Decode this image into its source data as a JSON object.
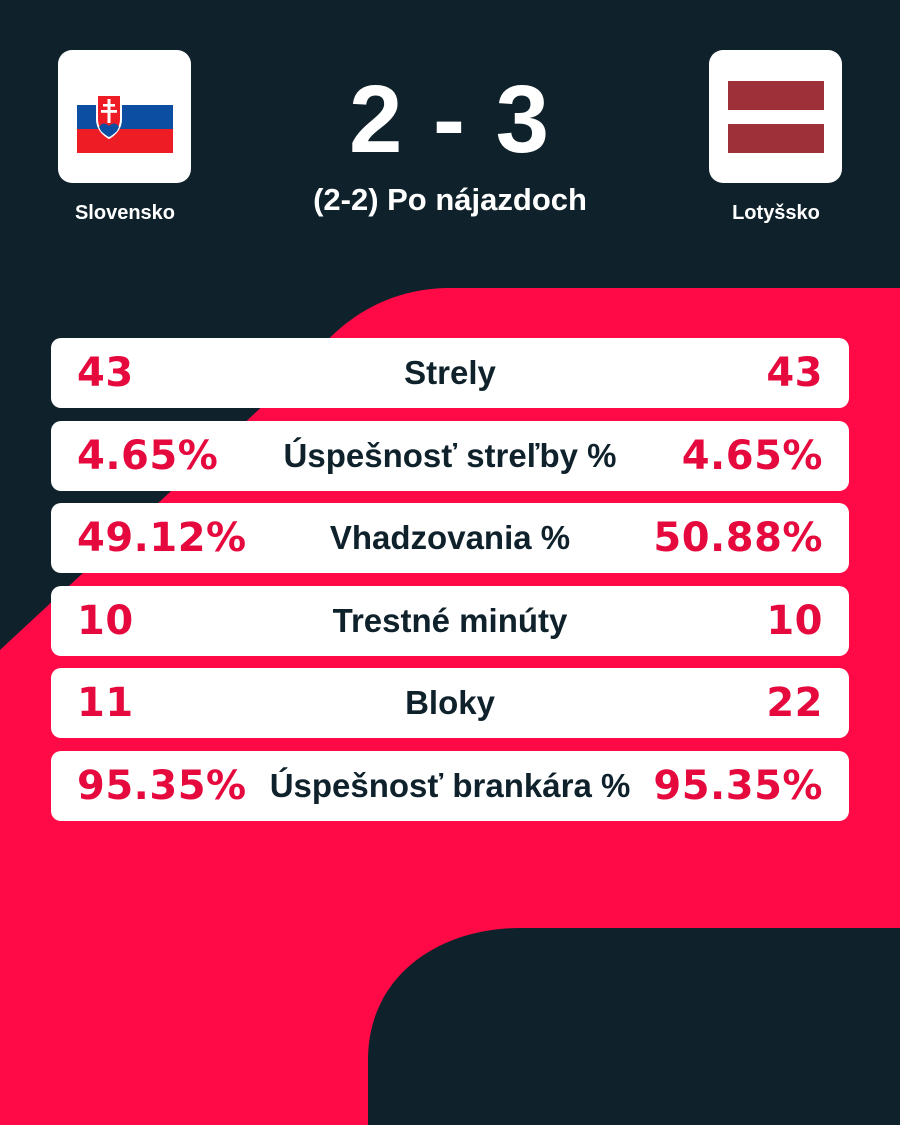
{
  "match": {
    "home_team": "Slovensko",
    "away_team": "Lotyšsko",
    "score": "2 - 3",
    "result_note": "(2-2) Po nájazdoch"
  },
  "flags": {
    "home": "slovakia-flag",
    "away": "latvia-flag"
  },
  "stats": [
    {
      "label": "Strely",
      "home": "43",
      "away": "43"
    },
    {
      "label": "Úspešnosť streľby %",
      "home": "4.65%",
      "away": "4.65%"
    },
    {
      "label": "Vhadzovania %",
      "home": "49.12%",
      "away": "50.88%"
    },
    {
      "label": "Trestné minúty",
      "home": "10",
      "away": "10"
    },
    {
      "label": "Bloky",
      "home": "11",
      "away": "22"
    },
    {
      "label": "Úspešnosť brankára %",
      "home": "95.35%",
      "away": "95.35%"
    }
  ],
  "colors": {
    "background": "#0f222b",
    "accent": "#ff0a46",
    "value_text": "#e5093d",
    "card": "#ffffff"
  }
}
